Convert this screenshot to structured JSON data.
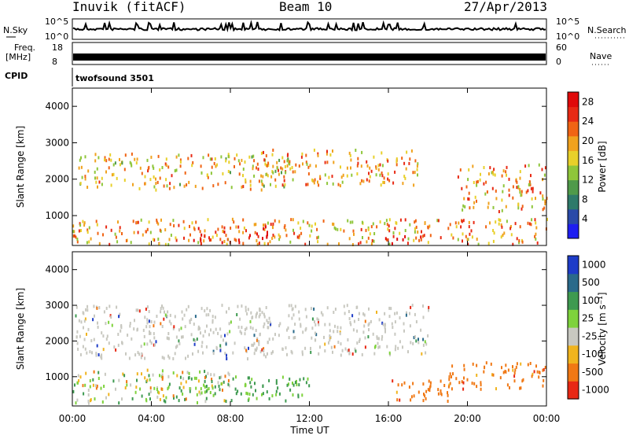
{
  "header": {
    "station": "Inuvik (fitACF)",
    "beam": "Beam 10",
    "date": "27/Apr/2013"
  },
  "status_panels": {
    "nsky": {
      "label": "N.Sky",
      "ticks": [
        "10^5",
        "10^0"
      ]
    },
    "nsearch": {
      "label": "N.Search",
      "ticks": [
        "10^5",
        "10^0"
      ]
    },
    "freq": {
      "label_line1": "Freq.",
      "label_line2": "[MHz]",
      "ticks": [
        "18",
        "8"
      ]
    },
    "nave": {
      "label": "Nave",
      "ticks": [
        "60",
        "0"
      ]
    },
    "cpid": {
      "label": "CPID",
      "value": "twofsound 3501"
    }
  },
  "chart_data": [
    {
      "type": "heatmap",
      "name": "power",
      "ylabel": "Slant Range [km]",
      "xlabel": "Time UT",
      "x_ticks": [
        "00:00",
        "04:00",
        "08:00",
        "12:00",
        "16:00",
        "20:00",
        "00:00"
      ],
      "y_ticks": [
        "1000",
        "2000",
        "3000",
        "4000"
      ],
      "ylim": [
        180,
        4500
      ],
      "xlim_hours": [
        0,
        24
      ],
      "colorbar": {
        "label": "Power [dB]",
        "ticks": [
          "4",
          "8",
          "12",
          "16",
          "20",
          "24",
          "28"
        ],
        "range": [
          0,
          30
        ],
        "colors": [
          "#1e1ef0",
          "#2a4aa8",
          "#2e7a6a",
          "#4f9a4a",
          "#8fc63a",
          "#e8d02a",
          "#f0a21e",
          "#f06414",
          "#e82a14",
          "#e00a0a"
        ]
      },
      "scatter_bands": [
        {
          "t": [
            0.0,
            24.0
          ],
          "r": [
            200,
            900
          ],
          "level": 20
        },
        {
          "t": [
            0.3,
            11.0
          ],
          "r": [
            1700,
            2700
          ],
          "level": 18
        },
        {
          "t": [
            9.5,
            17.5
          ],
          "r": [
            1800,
            2800
          ],
          "level": 20
        },
        {
          "t": [
            19.5,
            24.0
          ],
          "r": [
            1100,
            2400
          ],
          "level": 20
        },
        {
          "t": [
            6.0,
            10.0
          ],
          "r": [
            250,
            700
          ],
          "level": 28
        },
        {
          "t": [
            15.5,
            18.0
          ],
          "r": [
            220,
            500
          ],
          "level": 27
        }
      ]
    },
    {
      "type": "heatmap",
      "name": "velocity",
      "ylabel": "Slant Range [km]",
      "xlabel": "Time UT",
      "x_ticks": [
        "00:00",
        "04:00",
        "08:00",
        "12:00",
        "16:00",
        "20:00",
        "00:00"
      ],
      "y_ticks": [
        "1000",
        "2000",
        "3000",
        "4000"
      ],
      "ylim": [
        180,
        4500
      ],
      "xlim_hours": [
        0,
        24
      ],
      "colorbar": {
        "label": "Velocity [m s⁻¹]",
        "ticks": [
          "1000",
          "500",
          "100",
          "25",
          "-25",
          "-100",
          "-500",
          "-1000"
        ],
        "colors": [
          "#1e3cc8",
          "#2a6a8a",
          "#3e9a50",
          "#7ed23c",
          "#c8c8c0",
          "#f0b41e",
          "#f07814",
          "#e82814"
        ]
      },
      "scatter_bands": [
        {
          "t": [
            0.0,
            10.0
          ],
          "r": [
            1500,
            3000
          ],
          "class": "ground"
        },
        {
          "t": [
            9.0,
            18.0
          ],
          "r": [
            1600,
            3000
          ],
          "class": "ground"
        },
        {
          "t": [
            0.0,
            8.0
          ],
          "r": [
            250,
            1200
          ],
          "class": "mixed"
        },
        {
          "t": [
            5.0,
            12.0
          ],
          "r": [
            300,
            1000
          ],
          "class": "green"
        },
        {
          "t": [
            16.0,
            19.0
          ],
          "r": [
            250,
            900
          ],
          "class": "orange"
        },
        {
          "t": [
            19.0,
            24.0
          ],
          "r": [
            600,
            1400
          ],
          "class": "orange"
        }
      ]
    }
  ]
}
